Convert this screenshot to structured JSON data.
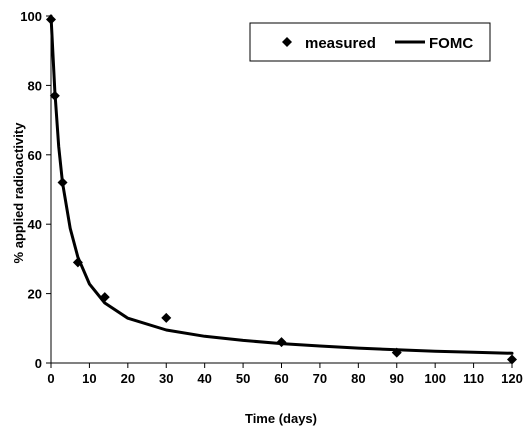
{
  "chart_data": {
    "type": "scatter",
    "xlabel": "Time (days)",
    "ylabel": "% applied radioactivity",
    "xlim": [
      0,
      120
    ],
    "ylim": [
      0,
      100
    ],
    "xticks": [
      0,
      10,
      20,
      30,
      40,
      50,
      60,
      70,
      80,
      90,
      100,
      110,
      120
    ],
    "yticks": [
      0,
      20,
      40,
      60,
      80,
      100
    ],
    "grid": false,
    "legend_position": "top-right",
    "series": [
      {
        "name": "measured",
        "kind": "points",
        "marker": "diamond",
        "color": "#000000",
        "x": [
          0,
          1,
          3,
          7,
          14,
          30,
          60,
          90,
          120
        ],
        "y": [
          99,
          77,
          52,
          29,
          19,
          13,
          6,
          3,
          1
        ]
      },
      {
        "name": "FOMC",
        "kind": "line",
        "color": "#000000",
        "x": [
          0,
          1,
          2,
          3,
          5,
          7,
          10,
          14,
          20,
          30,
          40,
          50,
          60,
          70,
          80,
          90,
          100,
          110,
          120
        ],
        "y": [
          100,
          78.5,
          62.4,
          52,
          38.8,
          30.5,
          22.8,
          17.3,
          12.9,
          9.5,
          7.7,
          6.5,
          5.6,
          4.9,
          4.3,
          3.8,
          3.4,
          3.1,
          2.8
        ]
      }
    ]
  }
}
